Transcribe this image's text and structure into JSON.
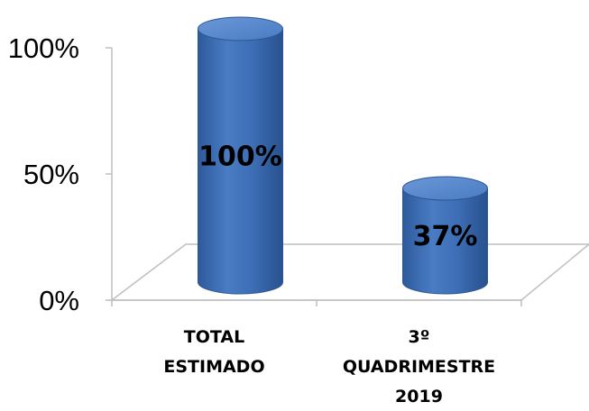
{
  "chart_data": {
    "type": "bar",
    "categories": [
      [
        "TOTAL",
        "ESTIMADO"
      ],
      [
        "3º",
        "QUADRIMESTRE",
        "2019"
      ]
    ],
    "values": [
      100,
      37
    ],
    "data_labels": [
      "100%",
      "37%"
    ],
    "yticks": [
      {
        "value": 0,
        "label": "0%"
      },
      {
        "value": 50,
        "label": "50%"
      },
      {
        "value": 100,
        "label": "100%"
      }
    ],
    "ylim": [
      0,
      100
    ],
    "title": "",
    "xlabel": "",
    "ylabel": "",
    "grid": false,
    "legend": "none",
    "style": "3d-cylinder",
    "colors": {
      "bar_fill": "#3f6fb5",
      "bar_top": "#5a8bd0",
      "bar_edge": "#2d5690",
      "axis": "#bfbfbf",
      "text": "#000000"
    }
  }
}
